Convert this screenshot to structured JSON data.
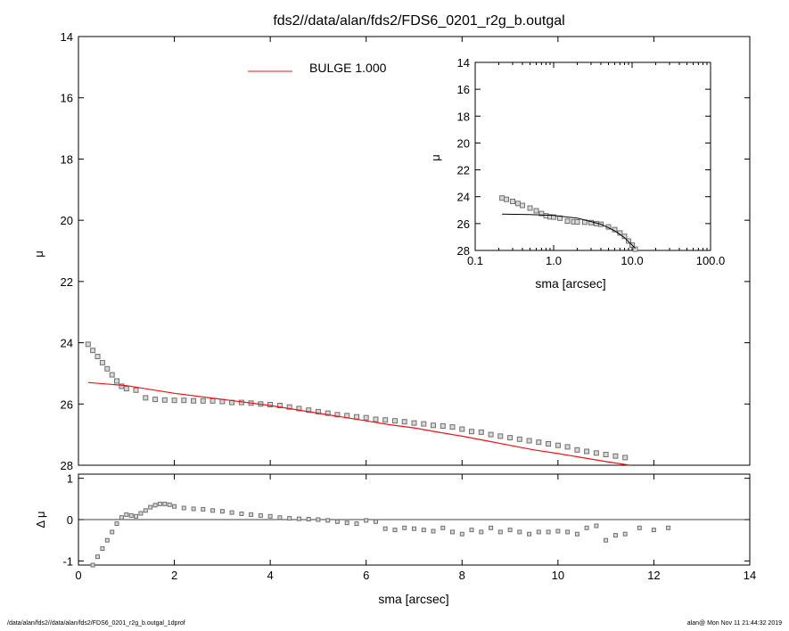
{
  "title": "fds2//data/alan/fds2/FDS6_0201_r2g_b.outgal",
  "footer": {
    "left": "/data/alan/fds2//data/alan/fds2/FDS6_0201_r2g_b.outgal_1dprof",
    "right": "alan@  Mon Nov 11 21:44:32 2019"
  },
  "colors": {
    "model": "#e8141c",
    "data": "#707070",
    "axes": "#000000"
  },
  "chart_data": [
    {
      "type": "scatter",
      "name": "main-profile",
      "xlabel": "sma [arcsec]",
      "ylabel": "μ",
      "xlim": [
        0,
        14
      ],
      "ylim": [
        28,
        14
      ],
      "y_inverted": true,
      "xticks": [
        0,
        2,
        4,
        6,
        8,
        10,
        12,
        14
      ],
      "yticks": [
        14,
        16,
        18,
        20,
        22,
        24,
        26,
        28
      ],
      "legend": {
        "label": "BULGE  1.000",
        "placement": "top-center"
      },
      "series": [
        {
          "name": "data",
          "marker": "square",
          "x": [
            0.2,
            0.3,
            0.4,
            0.5,
            0.6,
            0.7,
            0.8,
            0.9,
            1.0,
            1.2,
            1.4,
            1.6,
            1.8,
            2.0,
            2.2,
            2.4,
            2.6,
            2.8,
            3.0,
            3.2,
            3.4,
            3.6,
            3.8,
            4.0,
            4.2,
            4.4,
            4.6,
            4.8,
            5.0,
            5.2,
            5.4,
            5.6,
            5.8,
            6.0,
            6.2,
            6.4,
            6.6,
            6.8,
            7.0,
            7.2,
            7.4,
            7.6,
            7.8,
            8.0,
            8.2,
            8.4,
            8.6,
            8.8,
            9.0,
            9.2,
            9.4,
            9.6,
            9.8,
            10.0,
            10.2,
            10.4,
            10.6,
            10.8,
            11.0,
            11.2,
            11.4
          ],
          "y": [
            24.05,
            24.25,
            24.45,
            24.65,
            24.85,
            25.05,
            25.25,
            25.42,
            25.5,
            25.55,
            25.8,
            25.85,
            25.87,
            25.88,
            25.88,
            25.9,
            25.9,
            25.9,
            25.92,
            25.95,
            25.95,
            25.97,
            26.0,
            26.02,
            26.05,
            26.1,
            26.15,
            26.2,
            26.25,
            26.3,
            26.35,
            26.38,
            26.42,
            26.45,
            26.5,
            26.52,
            26.55,
            26.58,
            26.62,
            26.65,
            26.7,
            26.72,
            26.75,
            26.82,
            26.9,
            26.92,
            27.0,
            27.05,
            27.1,
            27.15,
            27.2,
            27.25,
            27.3,
            27.35,
            27.4,
            27.5,
            27.55,
            27.6,
            27.65,
            27.7,
            27.75
          ]
        },
        {
          "name": "BULGE  1.000",
          "marker": "line",
          "x": [
            0.2,
            1.0,
            2.0,
            3.0,
            4.0,
            5.0,
            6.0,
            6.5,
            7.0,
            7.5,
            8.0,
            8.5,
            9.0,
            9.5,
            10.0,
            10.5,
            11.0,
            11.5,
            12.0
          ],
          "y": [
            25.3,
            25.4,
            25.65,
            25.85,
            26.05,
            26.3,
            26.55,
            26.68,
            26.78,
            26.92,
            27.05,
            27.2,
            27.35,
            27.5,
            27.62,
            27.75,
            27.88,
            28.0,
            28.1
          ]
        }
      ]
    },
    {
      "type": "scatter",
      "name": "residuals",
      "xlabel": "sma [arcsec]",
      "ylabel": "Δ μ",
      "xlim": [
        0,
        14
      ],
      "ylim": [
        -1.1,
        1.1
      ],
      "xticks": [
        0,
        2,
        4,
        6,
        8,
        10,
        12,
        14
      ],
      "yticks": [
        1,
        0,
        -1
      ],
      "reference_line": 0,
      "series": [
        {
          "name": "residual",
          "marker": "square",
          "x": [
            0.3,
            0.4,
            0.5,
            0.6,
            0.7,
            0.8,
            0.9,
            1.0,
            1.1,
            1.2,
            1.3,
            1.4,
            1.5,
            1.6,
            1.7,
            1.8,
            1.9,
            2.0,
            2.2,
            2.4,
            2.6,
            2.8,
            3.0,
            3.2,
            3.4,
            3.6,
            3.8,
            4.0,
            4.2,
            4.4,
            4.6,
            4.8,
            5.0,
            5.2,
            5.4,
            5.6,
            5.8,
            6.0,
            6.2,
            6.4,
            6.6,
            6.8,
            7.0,
            7.2,
            7.4,
            7.6,
            7.8,
            8.0,
            8.2,
            8.4,
            8.6,
            8.8,
            9.0,
            9.2,
            9.4,
            9.6,
            9.8,
            10.0,
            10.2,
            10.4,
            10.6,
            10.8,
            11.0,
            11.2,
            11.4,
            11.7,
            12.0,
            12.3
          ],
          "y": [
            -1.1,
            -0.9,
            -0.7,
            -0.5,
            -0.3,
            -0.1,
            0.05,
            0.12,
            0.1,
            0.08,
            0.15,
            0.22,
            0.3,
            0.35,
            0.38,
            0.38,
            0.36,
            0.32,
            0.28,
            0.26,
            0.25,
            0.22,
            0.2,
            0.17,
            0.14,
            0.12,
            0.1,
            0.08,
            0.05,
            0.03,
            0.02,
            0.01,
            0.0,
            -0.02,
            -0.05,
            -0.08,
            -0.1,
            -0.02,
            -0.05,
            -0.22,
            -0.25,
            -0.2,
            -0.22,
            -0.25,
            -0.28,
            -0.2,
            -0.3,
            -0.35,
            -0.25,
            -0.3,
            -0.2,
            -0.3,
            -0.25,
            -0.3,
            -0.35,
            -0.3,
            -0.3,
            -0.28,
            -0.3,
            -0.35,
            -0.2,
            -0.15,
            -0.5,
            -0.38,
            -0.35,
            -0.2,
            -0.25,
            -0.2
          ]
        }
      ]
    },
    {
      "type": "scatter",
      "name": "inset-log",
      "xlabel": "sma [arcsec]",
      "ylabel": "μ",
      "xscale": "log",
      "xlim": [
        0.1,
        100.0
      ],
      "ylim": [
        28,
        14
      ],
      "y_inverted": true,
      "xticks": [
        0.1,
        1.0,
        10.0,
        100.0
      ],
      "xtick_labels": [
        "0.1",
        "1.0",
        "10.0",
        "100.0"
      ],
      "yticks": [
        14,
        16,
        18,
        20,
        22,
        24,
        26,
        28
      ],
      "series": [
        {
          "name": "data",
          "marker": "square",
          "x": [
            0.22,
            0.25,
            0.3,
            0.35,
            0.4,
            0.5,
            0.6,
            0.7,
            0.8,
            0.9,
            1.0,
            1.2,
            1.5,
            1.8,
            2.0,
            2.5,
            3.0,
            3.5,
            4.0,
            5.0,
            6.0,
            7.0,
            8.0,
            9.0,
            10.0,
            11.0
          ],
          "y": [
            24.1,
            24.2,
            24.35,
            24.5,
            24.65,
            24.85,
            25.05,
            25.25,
            25.42,
            25.5,
            25.52,
            25.6,
            25.82,
            25.87,
            25.88,
            25.9,
            25.93,
            26.0,
            26.05,
            26.25,
            26.45,
            26.7,
            26.95,
            27.3,
            27.6,
            27.9
          ]
        },
        {
          "name": "model",
          "marker": "line",
          "x": [
            0.22,
            0.5,
            1.0,
            2.0,
            3.0,
            4.0,
            5.0,
            6.0,
            7.0,
            8.0,
            9.0,
            10.0,
            11.0,
            12.0
          ],
          "y": [
            25.3,
            25.33,
            25.4,
            25.6,
            25.85,
            26.05,
            26.3,
            26.55,
            26.8,
            27.05,
            27.35,
            27.6,
            27.85,
            28.1
          ]
        }
      ]
    }
  ]
}
